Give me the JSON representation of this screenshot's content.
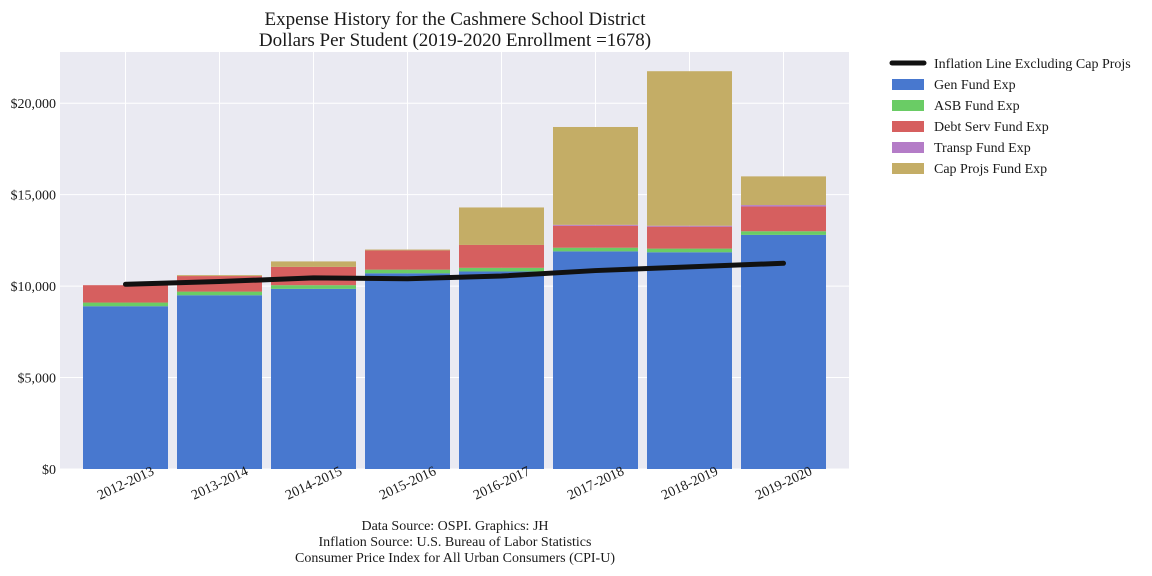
{
  "chart_data": {
    "type": "bar",
    "stacked": true,
    "title": "Expense History for the Cashmere School District",
    "subtitle": "Dollars Per Student (2019-2020 Enrollment =1678)",
    "xlabel": "",
    "ylabel": "",
    "categories": [
      "2012-2013",
      "2013-2014",
      "2014-2015",
      "2015-2016",
      "2016-2017",
      "2017-2018",
      "2018-2019",
      "2019-2020"
    ],
    "ylim": [
      0,
      22800
    ],
    "yticks": [
      0,
      5000,
      10000,
      15000,
      20000
    ],
    "ytick_labels": [
      "$0",
      "$5,000",
      "$10,000",
      "$15,000",
      "$20,000"
    ],
    "grid": true,
    "legend_position": "outside-right",
    "series": [
      {
        "name": "Gen Fund Exp",
        "color": "#4878cf",
        "values": [
          8900,
          9500,
          9850,
          10700,
          10800,
          11900,
          11850,
          12800
        ]
      },
      {
        "name": "ASB Fund Exp",
        "color": "#6acc65",
        "values": [
          200,
          200,
          200,
          200,
          200,
          200,
          200,
          200
        ]
      },
      {
        "name": "Debt Serv Fund Exp",
        "color": "#d65f5f",
        "values": [
          950,
          850,
          1000,
          1050,
          1250,
          1200,
          1200,
          1350
        ]
      },
      {
        "name": "Transp Fund Exp",
        "color": "#b47cc7",
        "values": [
          0,
          0,
          0,
          0,
          0,
          50,
          50,
          80
        ]
      },
      {
        "name": "Cap Projs Fund Exp",
        "color": "#c4ad66",
        "values": [
          0,
          50,
          300,
          50,
          2050,
          5350,
          8450,
          1570
        ]
      }
    ],
    "line": {
      "name": "Inflation Line Excluding Cap Projs",
      "color": "#111111",
      "values": [
        10100,
        10250,
        10450,
        10400,
        10550,
        10850,
        11050,
        11250
      ]
    }
  },
  "source_notes": [
    "Data Source: OSPI. Graphics: JH",
    "Inflation Source: U.S. Bureau of Labor Statistics",
    "Consumer Price Index for All Urban Consumers (CPI-U)"
  ]
}
